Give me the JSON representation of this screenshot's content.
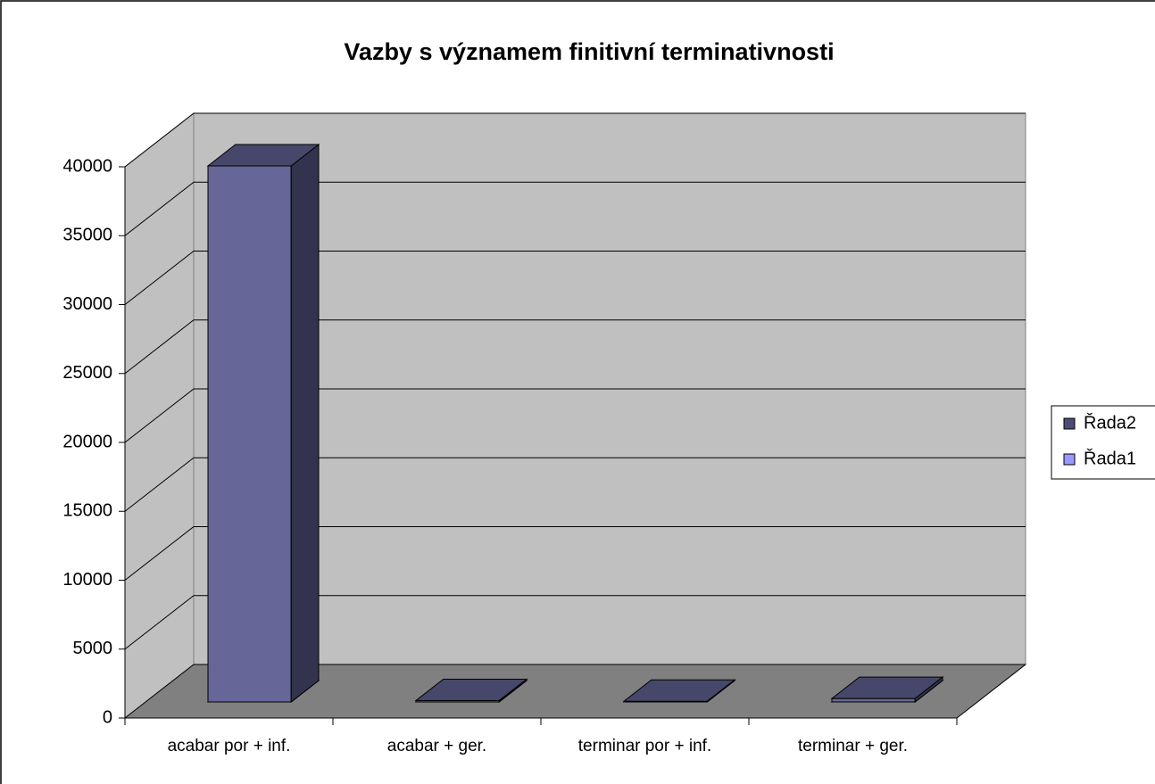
{
  "chart_data": {
    "type": "bar3d_stacked",
    "title": "Vazby s významem finitivní terminativnosti",
    "categories": [
      "acabar por + inf.",
      "acabar + ger.",
      "terminar por + inf.",
      "terminar + ger."
    ],
    "series": [
      {
        "name": "Řada2",
        "color": "#666699",
        "values": [
          38900,
          100,
          50,
          250
        ]
      },
      {
        "name": "Řada1",
        "color": "#9999ff",
        "values": [
          0,
          0,
          0,
          0
        ]
      }
    ],
    "ylim": [
      0,
      40000
    ],
    "yticks": [
      0,
      5000,
      10000,
      15000,
      20000,
      25000,
      30000,
      35000,
      40000
    ],
    "grid": true,
    "legend": "right"
  }
}
